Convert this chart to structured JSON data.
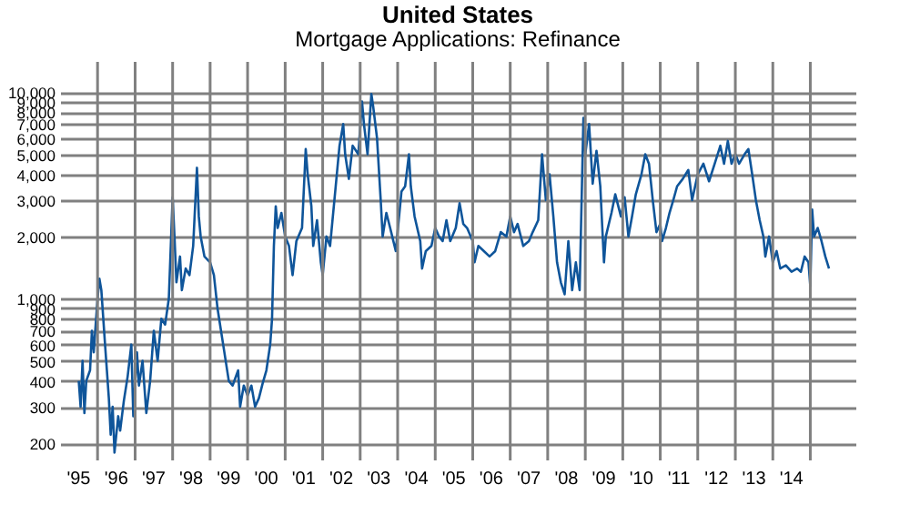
{
  "chart_data": {
    "type": "line",
    "title": "United States",
    "subtitle": "Mortgage Applications: Refinance",
    "x": [
      "1995-07-02",
      "1995-07-20",
      "1995-08-08",
      "1995-08-26",
      "1995-09-13",
      "1995-10-20",
      "1995-11-07",
      "1995-11-25",
      "1995-12-14",
      "1996-01-01",
      "1996-01-19",
      "1996-02-07",
      "1996-03-14",
      "1996-04-01",
      "1996-04-20",
      "1996-05-08",
      "1996-05-27",
      "1996-06-14",
      "1996-07-20",
      "1996-08-08",
      "1996-09-13",
      "1996-10-20",
      "1996-11-25",
      "1996-12-14",
      "1997-01-19",
      "1997-02-07",
      "1997-03-14",
      "1997-04-20",
      "1997-05-27",
      "1997-07-02",
      "1997-08-08",
      "1997-09-13",
      "1997-10-20",
      "1997-11-25",
      "1998-01-01",
      "1998-01-19",
      "1998-02-07",
      "1998-03-14",
      "1998-04-01",
      "1998-05-08",
      "1998-06-14",
      "1998-07-20",
      "1998-08-26",
      "1998-09-13",
      "1998-10-01",
      "1998-11-07",
      "1999-01-01",
      "1999-02-07",
      "1999-03-14",
      "1999-05-08",
      "1999-07-02",
      "1999-08-08",
      "1999-10-01",
      "1999-10-20",
      "1999-11-25",
      "2000-01-01",
      "2000-02-07",
      "2000-03-14",
      "2000-04-20",
      "2000-05-27",
      "2000-07-02",
      "2000-08-08",
      "2000-08-26",
      "2000-09-13",
      "2000-10-01",
      "2000-10-20",
      "2000-11-25",
      "2001-01-01",
      "2001-02-07",
      "2001-03-14",
      "2001-04-20",
      "2001-06-14",
      "2001-07-20",
      "2001-08-08",
      "2001-09-13",
      "2001-10-01",
      "2001-11-07",
      "2001-12-14",
      "2002-01-01",
      "2002-02-07",
      "2002-03-14",
      "2002-05-08",
      "2002-06-14",
      "2002-07-20",
      "2002-08-08",
      "2002-09-13",
      "2002-10-20",
      "2002-12-14",
      "2003-01-19",
      "2003-02-07",
      "2003-03-14",
      "2003-04-20",
      "2003-05-08",
      "2003-06-14",
      "2003-07-20",
      "2003-08-08",
      "2003-09-13",
      "2003-10-20",
      "2003-12-14",
      "2004-02-07",
      "2004-03-14",
      "2004-04-20",
      "2004-05-08",
      "2004-06-14",
      "2004-08-08",
      "2004-08-26",
      "2004-10-01",
      "2004-11-25",
      "2005-01-01",
      "2005-02-07",
      "2005-03-14",
      "2005-04-20",
      "2005-05-27",
      "2005-07-20",
      "2005-08-26",
      "2005-10-01",
      "2005-11-07",
      "2006-01-01",
      "2006-01-19",
      "2006-02-25",
      "2006-04-20",
      "2006-06-14",
      "2006-08-08",
      "2006-10-01",
      "2006-11-25",
      "2007-01-01",
      "2007-02-07",
      "2007-03-14",
      "2007-05-08",
      "2007-07-02",
      "2007-08-08",
      "2007-10-01",
      "2007-11-07",
      "2007-12-14",
      "2008-01-19",
      "2008-02-25",
      "2008-04-01",
      "2008-05-08",
      "2008-06-14",
      "2008-07-20",
      "2008-08-26",
      "2008-10-01",
      "2008-11-07",
      "2008-12-14",
      "2009-01-01",
      "2009-02-07",
      "2009-03-14",
      "2009-04-20",
      "2009-05-27",
      "2009-07-02",
      "2009-07-20",
      "2009-09-13",
      "2009-10-20",
      "2009-12-14",
      "2010-01-19",
      "2010-02-25",
      "2010-04-01",
      "2010-05-08",
      "2010-07-02",
      "2010-08-08",
      "2010-09-13",
      "2010-10-20",
      "2010-11-25",
      "2011-01-01",
      "2011-01-19",
      "2011-02-25",
      "2011-04-01",
      "2011-05-08",
      "2011-06-14",
      "2011-08-08",
      "2011-10-01",
      "2011-11-07",
      "2012-01-01",
      "2012-02-25",
      "2012-04-20",
      "2012-06-14",
      "2012-08-08",
      "2012-09-13",
      "2012-10-20",
      "2012-11-25",
      "2013-01-01",
      "2013-02-07",
      "2013-04-01",
      "2013-05-08",
      "2013-06-14",
      "2013-07-20",
      "2013-08-26",
      "2013-10-01",
      "2013-10-20",
      "2013-11-25",
      "2014-01-01",
      "2014-02-07",
      "2014-03-14",
      "2014-05-08",
      "2014-07-02",
      "2014-08-26",
      "2014-10-01",
      "2014-11-07",
      "2014-12-14",
      "2015-01-01",
      "2015-01-19",
      "2015-02-07",
      "2015-03-14",
      "2015-04-20",
      "2015-05-27",
      "2015-07-02"
    ],
    "series": [
      {
        "color": "#0f559a",
        "values": [
          400,
          300,
          500,
          280,
          400,
          450,
          700,
          550,
          750,
          1000,
          1250,
          1100,
          600,
          450,
          330,
          220,
          300,
          180,
          270,
          230,
          320,
          420,
          600,
          270,
          550,
          380,
          500,
          280,
          400,
          700,
          500,
          800,
          750,
          1000,
          3100,
          2000,
          1200,
          1600,
          1100,
          1400,
          1300,
          1800,
          4300,
          2500,
          2000,
          1600,
          1500,
          1300,
          900,
          600,
          400,
          380,
          450,
          300,
          380,
          340,
          380,
          300,
          330,
          390,
          450,
          600,
          800,
          1800,
          2800,
          2200,
          2600,
          2000,
          1800,
          1300,
          1900,
          2200,
          5300,
          4000,
          2800,
          1800,
          2400,
          1500,
          1300,
          2000,
          1800,
          3500,
          5500,
          7000,
          5000,
          3800,
          5500,
          5000,
          9000,
          7000,
          5000,
          9800,
          8500,
          6000,
          3000,
          2000,
          2600,
          2200,
          1700,
          3300,
          3500,
          5000,
          3500,
          2500,
          1900,
          1400,
          1700,
          1800,
          2200,
          2000,
          1900,
          2400,
          1900,
          2200,
          2900,
          2300,
          2200,
          1900,
          1500,
          1800,
          1700,
          1600,
          1700,
          2100,
          2000,
          2500,
          2100,
          2300,
          1800,
          1900,
          2100,
          2400,
          5000,
          3000,
          4000,
          2500,
          1500,
          1200,
          1050,
          1900,
          1100,
          1500,
          1100,
          7500,
          5000,
          7000,
          3600,
          5200,
          3500,
          1500,
          2000,
          2600,
          3200,
          2500,
          3100,
          2000,
          2500,
          3200,
          4000,
          5000,
          4500,
          3000,
          2100,
          2300,
          1900,
          2200,
          2600,
          3000,
          3500,
          3800,
          4200,
          3000,
          4000,
          4500,
          3700,
          4500,
          5500,
          4500,
          5800,
          4500,
          5000,
          4500,
          5000,
          5300,
          4000,
          3000,
          2400,
          2000,
          1600,
          2000,
          1500,
          1700,
          1400,
          1450,
          1350,
          1400,
          1350,
          1600,
          1500,
          1150,
          2700,
          2000,
          2200,
          1900,
          1600,
          1400
        ]
      }
    ],
    "log": "y",
    "grid": true,
    "marker": "none",
    "line_style": "solid",
    "xlim": [
      "1995-01-01",
      "2016-03-15"
    ],
    "xticks": [
      {
        "value": "1995-07-01",
        "label": "'95"
      },
      {
        "value": "1996-07-01",
        "label": "'96"
      },
      {
        "value": "1997-07-01",
        "label": "'97"
      },
      {
        "value": "1998-07-01",
        "label": "'98"
      },
      {
        "value": "1999-07-01",
        "label": "'99"
      },
      {
        "value": "2000-07-01",
        "label": "'00"
      },
      {
        "value": "2001-07-01",
        "label": "'01"
      },
      {
        "value": "2002-07-01",
        "label": "'02"
      },
      {
        "value": "2003-07-01",
        "label": "'03"
      },
      {
        "value": "2004-07-01",
        "label": "'04"
      },
      {
        "value": "2005-07-01",
        "label": "'05"
      },
      {
        "value": "2006-07-01",
        "label": "'06"
      },
      {
        "value": "2007-07-01",
        "label": "'07"
      },
      {
        "value": "2008-07-01",
        "label": "'08"
      },
      {
        "value": "2009-07-01",
        "label": "'09"
      },
      {
        "value": "2010-07-01",
        "label": "'10"
      },
      {
        "value": "2011-07-01",
        "label": "'11"
      },
      {
        "value": "2012-07-01",
        "label": "'12"
      },
      {
        "value": "2013-07-01",
        "label": "'13"
      },
      {
        "value": "2014-07-01",
        "label": "'14"
      },
      {
        "value": "1996-01-01",
        "label": null
      },
      {
        "value": "1997-01-01",
        "label": null
      },
      {
        "value": "1998-01-01",
        "label": null
      },
      {
        "value": "1999-01-01",
        "label": null
      },
      {
        "value": "2000-01-01",
        "label": null
      },
      {
        "value": "2001-01-01",
        "label": null
      },
      {
        "value": "2002-01-01",
        "label": null
      },
      {
        "value": "2003-01-01",
        "label": null
      },
      {
        "value": "2004-01-01",
        "label": null
      },
      {
        "value": "2005-01-01",
        "label": null
      },
      {
        "value": "2006-01-01",
        "label": null
      },
      {
        "value": "2007-01-01",
        "label": null
      },
      {
        "value": "2008-01-01",
        "label": null
      },
      {
        "value": "2009-01-01",
        "label": null
      },
      {
        "value": "2010-01-01",
        "label": null
      },
      {
        "value": "2011-01-01",
        "label": null
      },
      {
        "value": "2012-01-01",
        "label": null
      },
      {
        "value": "2013-01-01",
        "label": null
      },
      {
        "value": "2014-01-01",
        "label": null
      },
      {
        "value": "2015-01-01",
        "label": null
      }
    ],
    "ylim": [
      165,
      14000
    ],
    "yticks": [
      200,
      300,
      400,
      500,
      600,
      700,
      800,
      900,
      {
        "value": 1000,
        "label": "1,000"
      },
      {
        "value": 2000,
        "label": "2,000"
      },
      {
        "value": 3000,
        "label": "3,000"
      },
      {
        "value": 4000,
        "label": "4,000"
      },
      {
        "value": 5000,
        "label": "5,000"
      },
      {
        "value": 6000,
        "label": "6,000"
      },
      {
        "value": 7000,
        "label": "7,000"
      },
      {
        "value": 8000,
        "label": "8,000"
      },
      {
        "value": 9000,
        "label": "9,000"
      },
      {
        "value": 10000,
        "label": "10,000"
      }
    ]
  }
}
